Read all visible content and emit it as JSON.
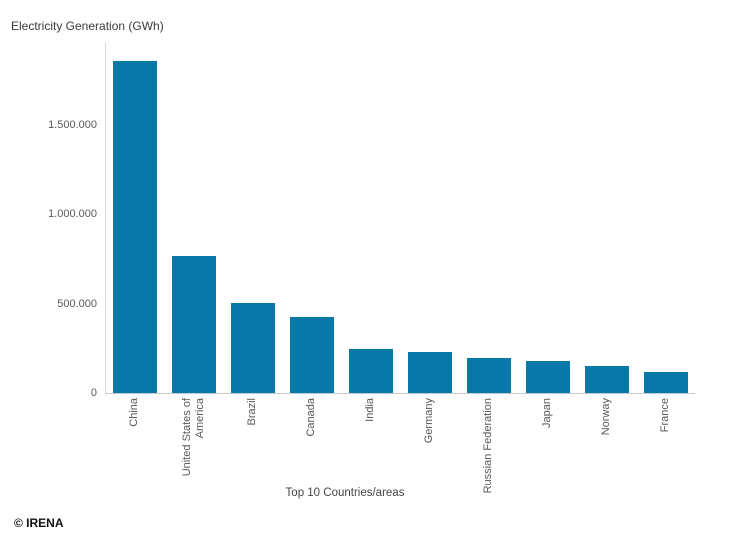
{
  "header": {
    "title": "Electricity Generation (GWh)"
  },
  "footer": {
    "copyright": "© IRENA"
  },
  "chart_data": {
    "type": "bar",
    "title": "Electricity Generation (GWh)",
    "xlabel": "Top 10 Countries/areas",
    "ylabel": "Electricity Generation (GWh)",
    "unit": "GWh",
    "categories": [
      "China",
      "United States of America",
      "Brazil",
      "Canada",
      "India",
      "Germany",
      "Russian Federation",
      "Japan",
      "Norway",
      "France"
    ],
    "xtick_lines": [
      [
        "China"
      ],
      [
        "United States of",
        "America"
      ],
      [
        "Brazil"
      ],
      [
        "Canada"
      ],
      [
        "India"
      ],
      [
        "Germany"
      ],
      [
        "Russian Federation"
      ],
      [
        "Japan"
      ],
      [
        "Norway"
      ],
      [
        "France"
      ]
    ],
    "values": [
      1860000,
      765000,
      505000,
      425000,
      245000,
      230000,
      195000,
      180000,
      150000,
      120000
    ],
    "ylim": [
      0,
      1960000
    ],
    "yticks": [
      {
        "value": 0,
        "label": "0"
      },
      {
        "value": 500000,
        "label": "500.000"
      },
      {
        "value": 1000000,
        "label": "1.000.000"
      },
      {
        "value": 1500000,
        "label": "1.500.000"
      }
    ],
    "grid": false,
    "legend_position": "none",
    "bar_color": "#0878a8",
    "axis_color": "#cccccc",
    "tick_label_color": "#595959"
  }
}
